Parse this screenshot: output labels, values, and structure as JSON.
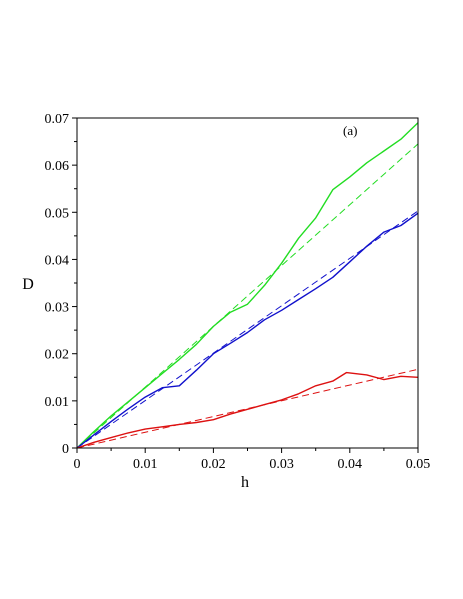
{
  "chart_data": {
    "type": "line",
    "title": "",
    "annotation": "(a)",
    "xlabel": "h",
    "ylabel": "D",
    "xlim": [
      0,
      0.05
    ],
    "ylim": [
      0,
      0.07
    ],
    "xticks": [
      0,
      0.01,
      0.02,
      0.03,
      0.04,
      0.05
    ],
    "xtick_labels": [
      "0",
      "0.01",
      "0.02",
      "0.03",
      "0.04",
      "0.05"
    ],
    "yticks": [
      0,
      0.01,
      0.02,
      0.03,
      0.04,
      0.05,
      0.06,
      0.07
    ],
    "ytick_labels": [
      "0",
      "0.01",
      "0.02",
      "0.03",
      "0.04",
      "0.05",
      "0.06",
      "0.07"
    ],
    "grid": false,
    "legend": "none",
    "series": [
      {
        "color": "#22dd22",
        "style": "solid",
        "x": [
          0,
          0.0025,
          0.005,
          0.0075,
          0.01,
          0.0125,
          0.015,
          0.0175,
          0.02,
          0.0225,
          0.025,
          0.0275,
          0.03,
          0.0325,
          0.035,
          0.0375,
          0.04,
          0.0425,
          0.045,
          0.0475,
          0.05
        ],
        "y": [
          0,
          0.0035,
          0.0068,
          0.0098,
          0.0128,
          0.0158,
          0.0188,
          0.022,
          0.0258,
          0.0288,
          0.0305,
          0.0345,
          0.0392,
          0.0445,
          0.0488,
          0.0548,
          0.0575,
          0.0605,
          0.063,
          0.0655,
          0.069
        ]
      },
      {
        "color": "#22dd22",
        "style": "dashed",
        "x": [
          0,
          0.05
        ],
        "y": [
          0,
          0.0645
        ]
      },
      {
        "color": "#1111cc",
        "style": "solid",
        "x": [
          0,
          0.0025,
          0.005,
          0.0075,
          0.01,
          0.0125,
          0.015,
          0.0175,
          0.02,
          0.0225,
          0.025,
          0.0275,
          0.03,
          0.0325,
          0.035,
          0.0375,
          0.04,
          0.0425,
          0.045,
          0.0475,
          0.05
        ],
        "y": [
          0,
          0.0028,
          0.0056,
          0.0083,
          0.0108,
          0.0128,
          0.0132,
          0.0165,
          0.02,
          0.0222,
          0.0245,
          0.0272,
          0.0292,
          0.0315,
          0.0338,
          0.0362,
          0.0395,
          0.0428,
          0.0458,
          0.0472,
          0.0498
        ]
      },
      {
        "color": "#1111cc",
        "style": "dashed",
        "x": [
          0,
          0.05
        ],
        "y": [
          0,
          0.0503
        ]
      },
      {
        "color": "#dd1111",
        "style": "solid",
        "x": [
          0,
          0.0025,
          0.005,
          0.0075,
          0.01,
          0.0125,
          0.015,
          0.0175,
          0.02,
          0.0225,
          0.025,
          0.0275,
          0.03,
          0.0325,
          0.035,
          0.0375,
          0.0395,
          0.0425,
          0.045,
          0.0475,
          0.05
        ],
        "y": [
          0,
          0.0012,
          0.0022,
          0.0032,
          0.004,
          0.0045,
          0.005,
          0.0054,
          0.006,
          0.0072,
          0.0082,
          0.0092,
          0.0102,
          0.0115,
          0.0132,
          0.0142,
          0.016,
          0.0155,
          0.0145,
          0.0152,
          0.015
        ]
      },
      {
        "color": "#dd1111",
        "style": "dashed",
        "x": [
          0,
          0.05
        ],
        "y": [
          0,
          0.0167
        ]
      }
    ]
  }
}
